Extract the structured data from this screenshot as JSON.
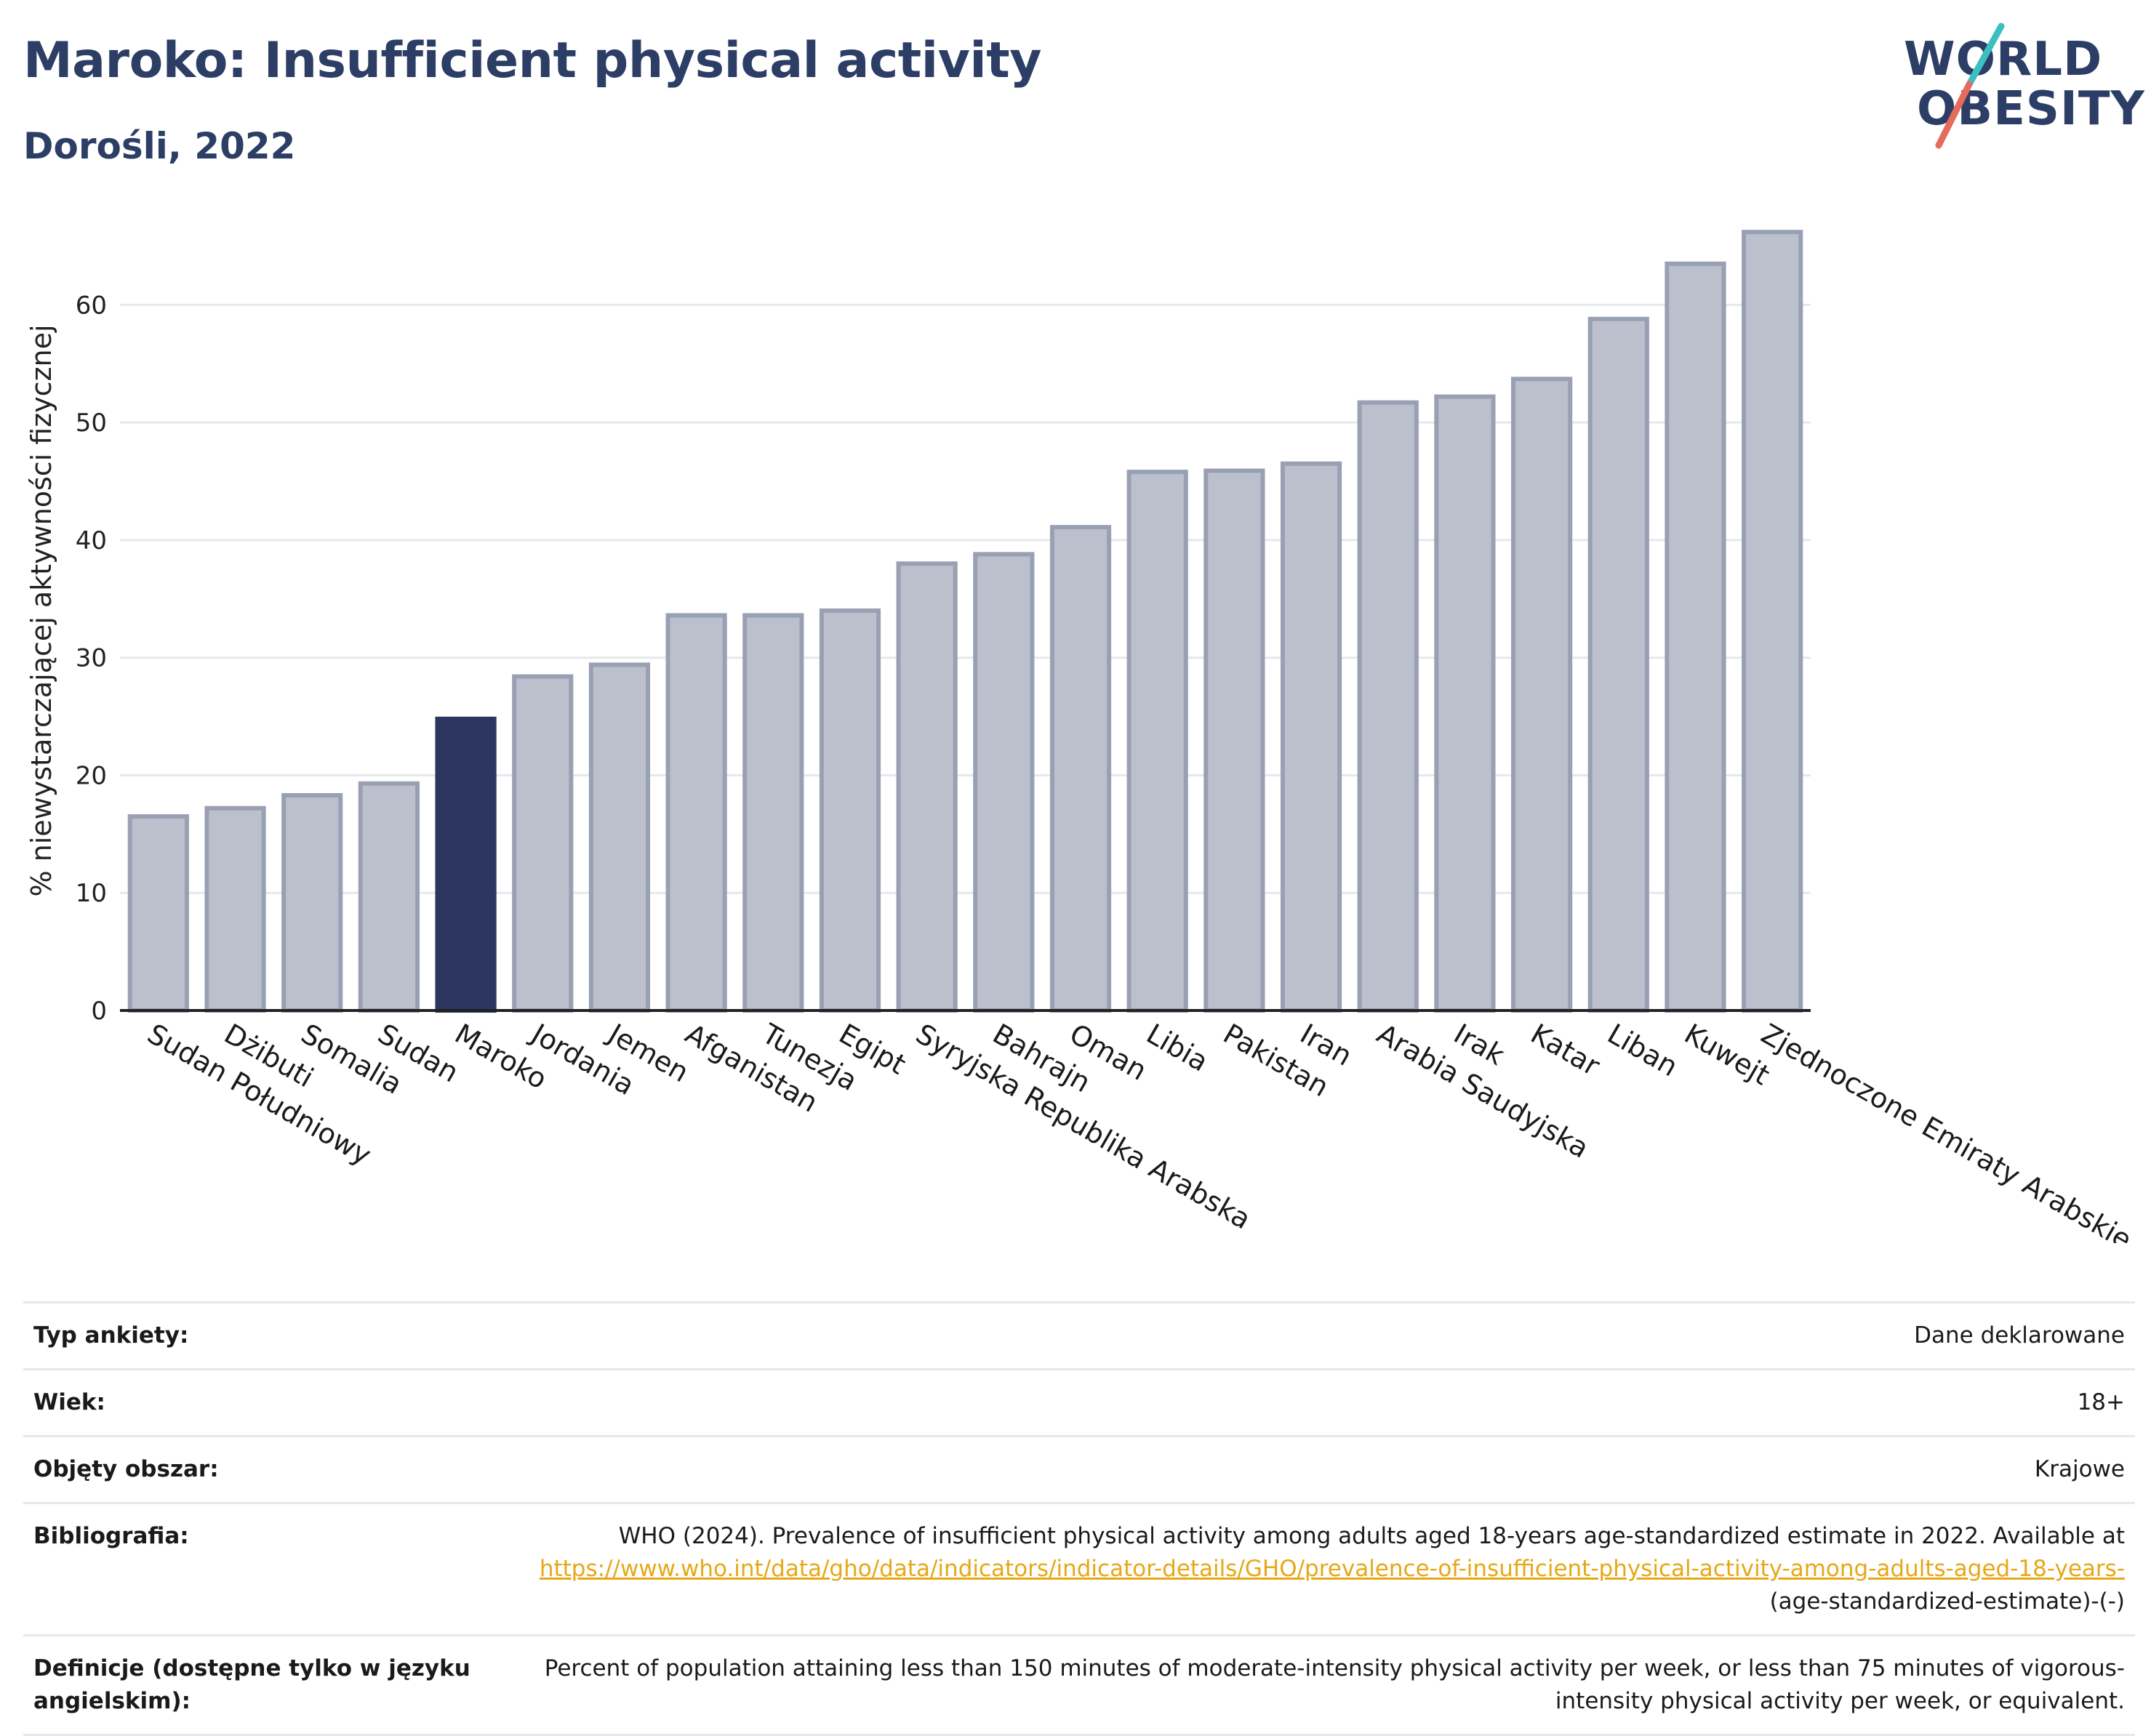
{
  "header": {
    "title": "Maroko: Insufficient physical activity",
    "subtitle": "Dorośli, 2022"
  },
  "logo": {
    "line1": "WORLD",
    "line2": "OBESITY",
    "colors": {
      "text": "#2c3e66",
      "slash_top": "#3bbfbf",
      "slash_bottom": "#e56b5d"
    }
  },
  "colors": {
    "highlight": "#2c3660",
    "bar_fill": "#bcc0cd",
    "bar_stroke": "#9aa0b4",
    "grid": "#e6e8ec",
    "link": "#e6a817"
  },
  "chart_data": {
    "type": "bar",
    "title": "Maroko: Insufficient physical activity",
    "subtitle": "Dorośli, 2022",
    "xlabel": "",
    "ylabel": "% niewystarczającej aktywności fizycznej",
    "ylim": [
      0,
      68
    ],
    "yticks": [
      0,
      10,
      20,
      30,
      40,
      50,
      60
    ],
    "grid": true,
    "highlight": "Maroko",
    "categories": [
      "Sudan Południowy",
      "Dżibuti",
      "Somalia",
      "Sudan",
      "Maroko",
      "Jordania",
      "Jemen",
      "Afganistan",
      "Tunezja",
      "Egipt",
      "Syryjska Republika Arabska",
      "Bahrajn",
      "Oman",
      "Libia",
      "Pakistan",
      "Iran",
      "Arabia Saudyjska",
      "Irak",
      "Katar",
      "Liban",
      "Kuwejt",
      "Zjednoczone Emiraty Arabskie"
    ],
    "values": [
      16.5,
      17.2,
      18.3,
      19.3,
      24.8,
      28.4,
      29.4,
      33.6,
      33.6,
      34.0,
      38.0,
      38.8,
      41.1,
      45.8,
      45.9,
      46.5,
      51.7,
      52.2,
      53.7,
      58.8,
      63.5,
      66.2
    ]
  },
  "info": {
    "rows": [
      {
        "label": "Typ ankiety:",
        "value": "Dane deklarowane"
      },
      {
        "label": "Wiek:",
        "value": "18+"
      },
      {
        "label": "Objęty obszar:",
        "value": "Krajowe"
      }
    ],
    "bibliography": {
      "label": "Bibliografia:",
      "text": "WHO (2024). Prevalence of insufficient physical activity among adults aged 18-years age-standardized estimate in 2022. Available at",
      "link": "https://www.who.int/data/gho/data/indicators/indicator-details/GHO/prevalence-of-insufficient-physical-activity-among-adults-aged-18-years-",
      "suffix": "(age-standardized-estimate)-(-)"
    },
    "definition": {
      "label": "Definicje (dostępne tylko w języku angielskim):",
      "value": "Percent of population attaining less than 150 minutes of moderate-intensity physical activity per week, or less than 75 minutes of vigorous-intensity physical activity per week, or equivalent."
    }
  }
}
